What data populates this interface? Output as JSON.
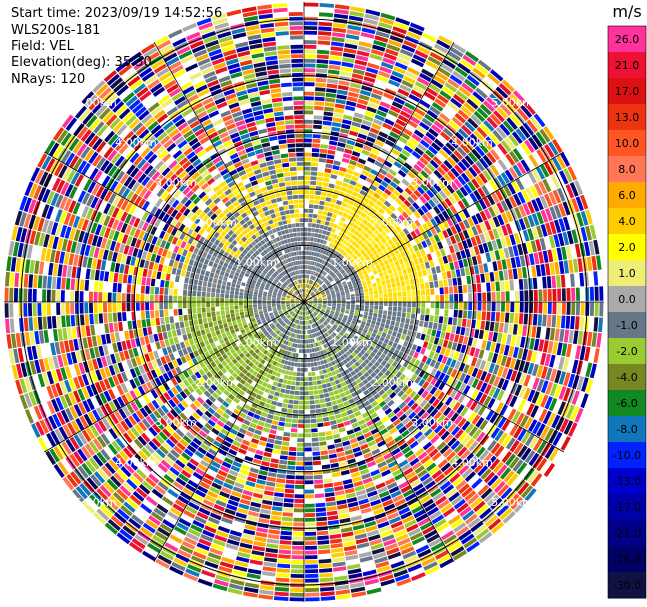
{
  "info": {
    "start_time": "Start time: 2023/09/19 14:52:56",
    "instrument": "WLS200s-181",
    "field": "Field: VEL",
    "elevation": "Elevation(deg): 35.30",
    "nrays": "NRays: 120"
  },
  "chart_data": {
    "type": "heatmap",
    "projection": "polar-ppi",
    "field": "VEL",
    "nrays": 120,
    "range_rings_km": [
      1.0,
      2.0,
      3.0,
      4.0,
      5.0
    ],
    "ring_labels": [
      "1.00km",
      "2.00km",
      "3.00km",
      "4.00km",
      "5.00km"
    ],
    "colorbar": {
      "unit": "m/s",
      "ticks": [
        "26.0",
        "21.0",
        "17.0",
        "13.0",
        "10.0",
        "8.0",
        "6.0",
        "4.0",
        "2.0",
        "1.0",
        "0.0",
        "-1.0",
        "-2.0",
        "-4.0",
        "-6.0",
        "-8.0",
        "-10.0",
        "-13.0",
        "-17.0",
        "-21.0",
        "-26.0",
        "-30.0"
      ],
      "colors": [
        "#ff3399",
        "#ee1133",
        "#dd1111",
        "#ee3311",
        "#ff5522",
        "#ff7755",
        "#ffaa00",
        "#ffcc00",
        "#ffff00",
        "#eeee77",
        "#aaaaaa",
        "#667788",
        "#99cc33",
        "#778822",
        "#118822",
        "#1177bb",
        "#0022ff",
        "#0000cc",
        "#0000aa",
        "#000088",
        "#000066",
        "#111144"
      ]
    }
  }
}
